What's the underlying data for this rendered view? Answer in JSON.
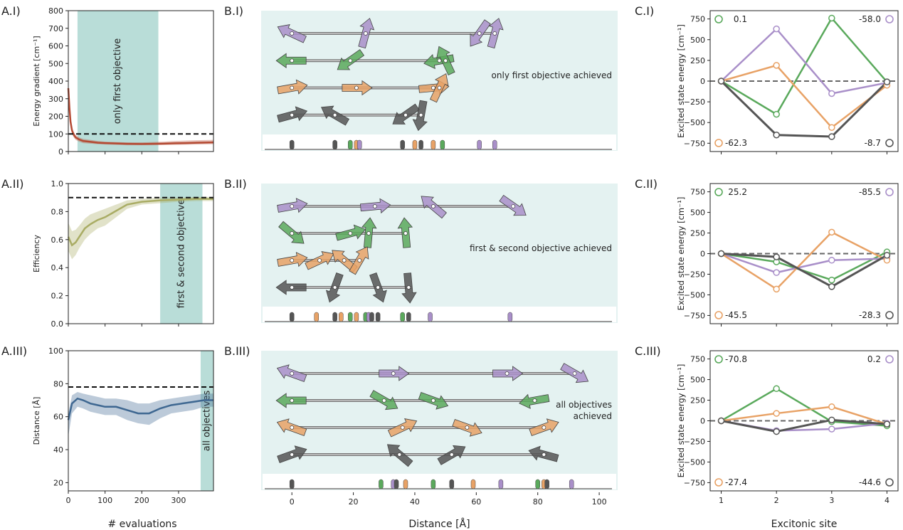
{
  "colors": {
    "green": "#5aa95c",
    "purple": "#a98fc9",
    "orange": "#e8a266",
    "gray": "#555555",
    "teal": "#b9ddd8",
    "tealLight": "#e4f2f1",
    "red": "#b44a33",
    "olive": "#a9ac64",
    "blue": "#3e6791"
  },
  "chart_data": [
    {
      "panel": "A.I)",
      "type": "line",
      "xlabel": "",
      "ylabel": "Energy gradient [cm⁻¹]",
      "xlim": [
        0,
        395
      ],
      "ylim": [
        0,
        800
      ],
      "xticks": [
        0,
        100,
        200,
        300
      ],
      "yticks": [
        0,
        100,
        200,
        300,
        400,
        500,
        600,
        700,
        800
      ],
      "threshold": 100,
      "band": {
        "from": 25,
        "to": 245,
        "label": "only first objective"
      },
      "x": [
        0,
        3,
        6,
        10,
        15,
        20,
        30,
        40,
        60,
        80,
        100,
        130,
        160,
        200,
        230,
        260,
        290,
        320,
        350,
        395
      ],
      "y": [
        360,
        250,
        170,
        120,
        95,
        80,
        68,
        60,
        55,
        50,
        48,
        46,
        44,
        43,
        44,
        45,
        47,
        48,
        50,
        52
      ],
      "band_lo": [
        330,
        220,
        140,
        100,
        80,
        66,
        55,
        48,
        45,
        42,
        40,
        38,
        36,
        36,
        36,
        37,
        38,
        39,
        40,
        42
      ],
      "band_hi": [
        390,
        280,
        200,
        140,
        110,
        94,
        80,
        72,
        66,
        60,
        56,
        54,
        52,
        52,
        54,
        56,
        60,
        62,
        64,
        66
      ]
    },
    {
      "panel": "A.II)",
      "type": "line",
      "xlabel": "",
      "ylabel": "Efficiency",
      "xlim": [
        0,
        395
      ],
      "ylim": [
        0.0,
        1.0
      ],
      "xticks": [
        0,
        100,
        200,
        300
      ],
      "yticks": [
        0.0,
        0.2,
        0.4,
        0.6,
        0.8,
        1.0
      ],
      "threshold": 0.9,
      "band": {
        "from": 250,
        "to": 365,
        "label": "first & second objective"
      },
      "x": [
        0,
        10,
        20,
        30,
        45,
        60,
        80,
        100,
        120,
        140,
        160,
        200,
        250,
        300,
        350,
        395
      ],
      "y": [
        0.62,
        0.56,
        0.58,
        0.62,
        0.68,
        0.71,
        0.74,
        0.76,
        0.79,
        0.82,
        0.85,
        0.87,
        0.88,
        0.885,
        0.89,
        0.89
      ],
      "band_lo": [
        0.52,
        0.46,
        0.49,
        0.54,
        0.6,
        0.64,
        0.68,
        0.7,
        0.74,
        0.78,
        0.82,
        0.85,
        0.86,
        0.87,
        0.875,
        0.875
      ],
      "band_hi": [
        0.72,
        0.66,
        0.67,
        0.7,
        0.75,
        0.78,
        0.8,
        0.82,
        0.84,
        0.86,
        0.88,
        0.89,
        0.9,
        0.9,
        0.905,
        0.905
      ]
    },
    {
      "panel": "A.III)",
      "type": "line",
      "xlabel": "# evaluations",
      "ylabel": "Distance [Å]",
      "xlim": [
        0,
        395
      ],
      "ylim": [
        15,
        100
      ],
      "xticks": [
        0,
        100,
        200,
        300
      ],
      "xticklabels": [
        "0",
        "100",
        "200",
        "300"
      ],
      "yticks": [
        20,
        40,
        60,
        80,
        100
      ],
      "threshold": 78,
      "band": {
        "from": 360,
        "to": 395,
        "label": "all  objectives"
      },
      "x": [
        0,
        10,
        25,
        40,
        60,
        80,
        100,
        130,
        160,
        190,
        220,
        250,
        280,
        310,
        340,
        370,
        395
      ],
      "y": [
        58,
        68,
        71,
        70,
        68,
        67,
        66,
        66,
        64,
        62,
        62,
        65,
        67,
        68,
        69,
        70,
        70
      ],
      "band_lo": [
        48,
        62,
        66,
        65,
        63,
        62,
        61,
        61,
        58,
        56,
        55,
        59,
        62,
        63,
        64,
        66,
        66
      ],
      "band_hi": [
        62,
        73,
        75,
        74,
        73,
        72,
        71,
        71,
        70,
        68,
        68,
        70,
        71,
        72,
        73,
        74,
        74
      ]
    },
    {
      "panel": "B.I)",
      "type": "scatter",
      "xlabel": "",
      "ylabel": "",
      "xlim": [
        -10,
        106
      ],
      "label": "only first objective achieved",
      "rows": [
        {
          "color": "purple",
          "bar": [
            0,
            65
          ],
          "arrows": [
            {
              "x": 0,
              "a": 155
            },
            {
              "x": 24,
              "a": 75
            },
            {
              "x": 61,
              "a": 235
            },
            {
              "x": 66,
              "a": 75
            }
          ]
        },
        {
          "color": "green",
          "bar": [
            0,
            50
          ],
          "arrows": [
            {
              "x": 0,
              "a": 180
            },
            {
              "x": 19,
              "a": 215
            },
            {
              "x": 48,
              "a": 190
            },
            {
              "x": 50,
              "a": 115
            }
          ]
        },
        {
          "color": "orange",
          "bar": [
            0,
            49
          ],
          "arrows": [
            {
              "x": 0,
              "a": 10
            },
            {
              "x": 21,
              "a": 0
            },
            {
              "x": 46,
              "a": 5
            },
            {
              "x": 48,
              "a": 65
            }
          ]
        },
        {
          "color": "gray",
          "bar": [
            0,
            42
          ],
          "arrows": [
            {
              "x": 0,
              "a": 15
            },
            {
              "x": 14,
              "a": 150
            },
            {
              "x": 37,
              "a": 215
            },
            {
              "x": 42,
              "a": 260
            }
          ]
        }
      ],
      "markers": [
        {
          "x": 0,
          "c": "gray"
        },
        {
          "x": 14,
          "c": "gray"
        },
        {
          "x": 19,
          "c": "green"
        },
        {
          "x": 21,
          "c": "orange"
        },
        {
          "x": 22,
          "c": "purple"
        },
        {
          "x": 36,
          "c": "gray"
        },
        {
          "x": 40,
          "c": "orange"
        },
        {
          "x": 42,
          "c": "gray"
        },
        {
          "x": 46,
          "c": "orange"
        },
        {
          "x": 49,
          "c": "green"
        },
        {
          "x": 61,
          "c": "purple"
        },
        {
          "x": 66,
          "c": "purple"
        }
      ]
    },
    {
      "panel": "B.II)",
      "type": "scatter",
      "xlabel": "",
      "ylabel": "",
      "xlim": [
        -10,
        106
      ],
      "label": "first & second objective achieved",
      "rows": [
        {
          "color": "purple",
          "bar": [
            0,
            71
          ],
          "arrows": [
            {
              "x": 0,
              "a": 10
            },
            {
              "x": 27,
              "a": 5
            },
            {
              "x": 46,
              "a": 140
            },
            {
              "x": 72,
              "a": 325
            }
          ]
        },
        {
          "color": "green",
          "bar": [
            0,
            37
          ],
          "arrows": [
            {
              "x": 0,
              "a": 320
            },
            {
              "x": 19,
              "a": 15
            },
            {
              "x": 25,
              "a": 85
            },
            {
              "x": 37,
              "a": 95
            }
          ]
        },
        {
          "color": "orange",
          "bar": [
            0,
            23
          ],
          "arrows": [
            {
              "x": 0,
              "a": 10
            },
            {
              "x": 9,
              "a": 25
            },
            {
              "x": 17,
              "a": 140
            },
            {
              "x": 22,
              "a": 60
            }
          ]
        },
        {
          "color": "gray",
          "bar": [
            0,
            39
          ],
          "arrows": [
            {
              "x": 0,
              "a": 180
            },
            {
              "x": 14,
              "a": 250
            },
            {
              "x": 28,
              "a": 290
            },
            {
              "x": 38,
              "a": 275
            }
          ]
        }
      ],
      "markers": [
        {
          "x": 0,
          "c": "gray"
        },
        {
          "x": 8,
          "c": "orange"
        },
        {
          "x": 14,
          "c": "gray"
        },
        {
          "x": 16,
          "c": "orange"
        },
        {
          "x": 19,
          "c": "green"
        },
        {
          "x": 21,
          "c": "orange"
        },
        {
          "x": 24,
          "c": "green"
        },
        {
          "x": 25,
          "c": "purple"
        },
        {
          "x": 26,
          "c": "gray"
        },
        {
          "x": 28,
          "c": "gray"
        },
        {
          "x": 36,
          "c": "green"
        },
        {
          "x": 38,
          "c": "gray"
        },
        {
          "x": 45,
          "c": "purple"
        },
        {
          "x": 71,
          "c": "purple"
        }
      ]
    },
    {
      "panel": "B.III)",
      "type": "scatter",
      "xlabel": "Distance [Å]",
      "ylabel": "",
      "xlim": [
        -10,
        106
      ],
      "xticks": [
        0,
        20,
        40,
        60,
        80,
        100
      ],
      "label": "all objectives\nachieved",
      "rows": [
        {
          "color": "purple",
          "bar": [
            0,
            91
          ],
          "arrows": [
            {
              "x": 0,
              "a": 160
            },
            {
              "x": 33,
              "a": 0
            },
            {
              "x": 70,
              "a": 0
            },
            {
              "x": 92,
              "a": 330
            }
          ]
        },
        {
          "color": "green",
          "bar": [
            0,
            80
          ],
          "arrows": [
            {
              "x": 0,
              "a": 180
            },
            {
              "x": 30,
              "a": 330
            },
            {
              "x": 46,
              "a": 340
            },
            {
              "x": 79,
              "a": 190
            }
          ]
        },
        {
          "color": "orange",
          "bar": [
            0,
            82
          ],
          "arrows": [
            {
              "x": 0,
              "a": 160
            },
            {
              "x": 36,
              "a": 25
            },
            {
              "x": 57,
              "a": 340
            },
            {
              "x": 82,
              "a": 20
            }
          ]
        },
        {
          "color": "gray",
          "bar": [
            0,
            83
          ],
          "arrows": [
            {
              "x": 0,
              "a": 20
            },
            {
              "x": 35,
              "a": 140
            },
            {
              "x": 52,
              "a": 30
            },
            {
              "x": 82,
              "a": 165
            }
          ]
        }
      ],
      "markers": [
        {
          "x": 0,
          "c": "gray"
        },
        {
          "x": 29,
          "c": "green"
        },
        {
          "x": 33,
          "c": "purple"
        },
        {
          "x": 34,
          "c": "gray"
        },
        {
          "x": 37,
          "c": "orange"
        },
        {
          "x": 46,
          "c": "green"
        },
        {
          "x": 52,
          "c": "gray"
        },
        {
          "x": 59,
          "c": "orange"
        },
        {
          "x": 68,
          "c": "purple"
        },
        {
          "x": 80,
          "c": "green"
        },
        {
          "x": 82,
          "c": "orange"
        },
        {
          "x": 83,
          "c": "gray"
        },
        {
          "x": 91,
          "c": "purple"
        }
      ]
    },
    {
      "panel": "C.I)",
      "type": "line",
      "xlabel": "",
      "ylabel": "Excited state energy [cm⁻¹]",
      "x": [
        1,
        2,
        3,
        4
      ],
      "ylim": [
        -850,
        850
      ],
      "yticks": [
        -750,
        -500,
        -250,
        0,
        250,
        500,
        750
      ],
      "series": [
        {
          "name": "0.1",
          "color": "green",
          "values": [
            0,
            -400,
            760,
            -10
          ],
          "corner": "tl"
        },
        {
          "name": "-58.0",
          "color": "purple",
          "values": [
            0,
            630,
            -150,
            -20
          ],
          "corner": "tr"
        },
        {
          "name": "-62.3",
          "color": "orange",
          "values": [
            0,
            190,
            -560,
            -50
          ],
          "corner": "bl"
        },
        {
          "name": "-8.7",
          "color": "gray",
          "values": [
            0,
            -650,
            -670,
            -10
          ],
          "corner": "br"
        }
      ]
    },
    {
      "panel": "C.II)",
      "type": "line",
      "xlabel": "",
      "ylabel": "Excited state energy [cm⁻¹]",
      "x": [
        1,
        2,
        3,
        4
      ],
      "ylim": [
        -850,
        850
      ],
      "yticks": [
        -750,
        -500,
        -250,
        0,
        250,
        500,
        750
      ],
      "series": [
        {
          "name": "25.2",
          "color": "green",
          "values": [
            0,
            -100,
            -320,
            20
          ],
          "corner": "tl"
        },
        {
          "name": "-85.5",
          "color": "purple",
          "values": [
            0,
            -230,
            -80,
            -60
          ],
          "corner": "tr"
        },
        {
          "name": "-45.5",
          "color": "orange",
          "values": [
            0,
            -430,
            260,
            -80
          ],
          "corner": "bl"
        },
        {
          "name": "-28.3",
          "color": "gray",
          "values": [
            0,
            -40,
            -400,
            -20
          ],
          "corner": "br"
        }
      ]
    },
    {
      "panel": "C.III)",
      "type": "line",
      "xlabel": "Excitonic site",
      "ylabel": "Excited state energy [cm⁻¹]",
      "x": [
        1,
        2,
        3,
        4
      ],
      "ylim": [
        -850,
        850
      ],
      "yticks": [
        -750,
        -500,
        -250,
        0,
        250,
        500,
        750
      ],
      "xticklabels": [
        "1",
        "2",
        "3",
        "4"
      ],
      "series": [
        {
          "name": "-70.8",
          "color": "green",
          "values": [
            0,
            390,
            -10,
            -60
          ],
          "corner": "tl"
        },
        {
          "name": "0.2",
          "color": "purple",
          "values": [
            0,
            -120,
            -100,
            -30
          ],
          "corner": "tr"
        },
        {
          "name": "-27.4",
          "color": "orange",
          "values": [
            0,
            90,
            170,
            -40
          ],
          "corner": "bl"
        },
        {
          "name": "-44.6",
          "color": "gray",
          "values": [
            0,
            -130,
            10,
            -40
          ],
          "corner": "br"
        }
      ]
    }
  ]
}
